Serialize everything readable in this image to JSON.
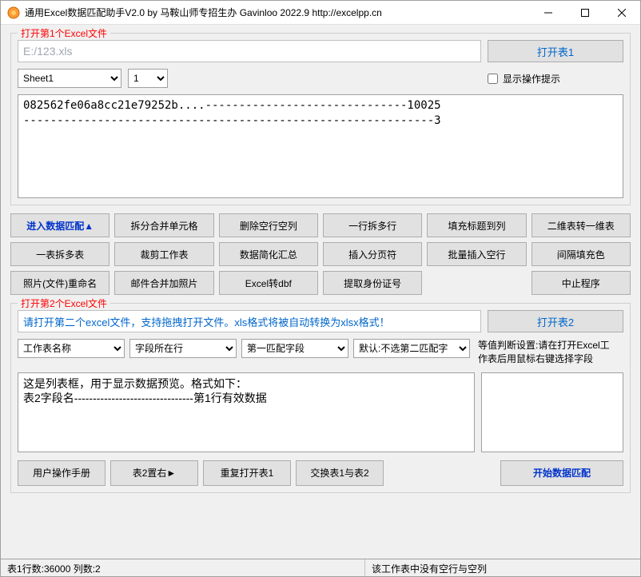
{
  "titlebar": {
    "title": "通用Excel数据匹配助手V2.0 by 马鞍山师专招生办  Gavinloo  2022.9 http://excelpp.cn"
  },
  "group1": {
    "legend": "打开第1个Excel文件",
    "path": "E:/123.xls",
    "open_btn": "打开表1",
    "sheet_selected": "Sheet1",
    "num_selected": "1",
    "show_hint_label": "显示操作提示",
    "preview": "082562fe06a8cc21e79252b....------------------------------10025\n-------------------------------------------------------------3"
  },
  "tools": {
    "row1": [
      "进入数据匹配▲",
      "拆分合并单元格",
      "删除空行空列",
      "一行拆多行",
      "填充标题到列",
      "二维表转一维表"
    ],
    "row2": [
      "一表拆多表",
      "裁剪工作表",
      "数据简化汇总",
      "插入分页符",
      "批量插入空行",
      "间隔填充色"
    ],
    "row3": [
      "照片(文件)重命名",
      "邮件合并加照片",
      "Excel转dbf",
      "提取身份证号",
      "",
      "中止程序"
    ]
  },
  "group2": {
    "legend": "打开第2个Excel文件",
    "hint": "请打开第二个excel文件，支持拖拽打开文件。xls格式将被自动转换为xlsx格式！",
    "open_btn": "打开表2",
    "sel1": "工作表名称",
    "sel2": "字段所在行",
    "sel3": "第一匹配字段",
    "sel4": "默认:不选第二匹配字",
    "right_note": "等值判断设置:请在打开Excel工作表后用鼠标右键选择字段",
    "preview": "这是列表框，用于显示数据预览。格式如下：\n表2字段名--------------------------------第1行有效数据"
  },
  "bottom_buttons": {
    "b1": "用户操作手册",
    "b2": "表2置右►",
    "b3": "重复打开表1",
    "b4": "交换表1与表2",
    "primary": "开始数据匹配"
  },
  "status": {
    "left": "表1行数:36000 列数:2",
    "right": "该工作表中没有空行与空列"
  }
}
